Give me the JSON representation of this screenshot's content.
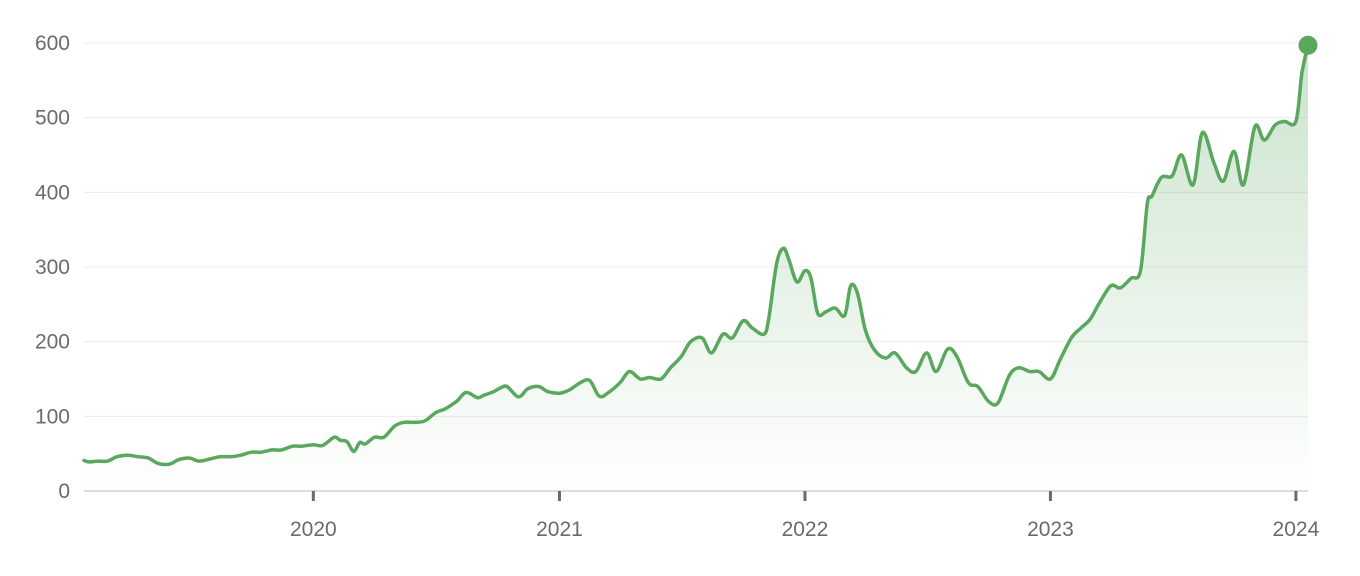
{
  "colors": {
    "line": "#5aa75e",
    "fill": "#5aa75e",
    "grid": "#ececec",
    "axis": "#d2d2d2",
    "tick": "#6b6b6b",
    "text": "#6b6b6b",
    "background": "#ffffff"
  },
  "chart_data": {
    "type": "area",
    "title": "",
    "xlabel": "",
    "ylabel": "",
    "x_range": [
      "2019-01-25",
      "2024-01-19"
    ],
    "ylim": [
      0,
      600
    ],
    "grid": true,
    "legend": "none",
    "y_ticks": [
      0,
      100,
      200,
      300,
      400,
      500,
      600
    ],
    "y_tick_labels": [
      "0",
      "100",
      "200",
      "300",
      "400",
      "500",
      "600"
    ],
    "x_ticks": [
      "2020-01-01",
      "2021-01-01",
      "2022-01-01",
      "2023-01-01",
      "2024-01-01"
    ],
    "x_tick_labels": [
      "2020",
      "2021",
      "2022",
      "2023",
      "2024"
    ],
    "series": [
      {
        "x": [
          "2019-01-25",
          "2019-02-01",
          "2019-02-15",
          "2019-03-01",
          "2019-03-15",
          "2019-04-01",
          "2019-04-15",
          "2019-05-01",
          "2019-05-15",
          "2019-06-01",
          "2019-06-15",
          "2019-07-01",
          "2019-07-15",
          "2019-08-01",
          "2019-08-15",
          "2019-09-01",
          "2019-09-15",
          "2019-10-01",
          "2019-10-15",
          "2019-11-01",
          "2019-11-15",
          "2019-12-01",
          "2019-12-15",
          "2020-01-01",
          "2020-01-15",
          "2020-02-01",
          "2020-02-10",
          "2020-02-20",
          "2020-03-01",
          "2020-03-10",
          "2020-03-18",
          "2020-04-01",
          "2020-04-15",
          "2020-05-01",
          "2020-05-15",
          "2020-06-01",
          "2020-06-15",
          "2020-07-01",
          "2020-07-15",
          "2020-08-01",
          "2020-08-15",
          "2020-09-01",
          "2020-09-10",
          "2020-09-25",
          "2020-10-05",
          "2020-10-15",
          "2020-11-01",
          "2020-11-15",
          "2020-12-01",
          "2020-12-15",
          "2021-01-01",
          "2021-01-15",
          "2021-02-01",
          "2021-02-15",
          "2021-03-01",
          "2021-03-15",
          "2021-04-01",
          "2021-04-15",
          "2021-05-01",
          "2021-05-15",
          "2021-06-01",
          "2021-06-15",
          "2021-07-01",
          "2021-07-15",
          "2021-08-01",
          "2021-08-15",
          "2021-09-01",
          "2021-09-15",
          "2021-10-01",
          "2021-10-15",
          "2021-11-01",
          "2021-11-08",
          "2021-11-20",
          "2021-11-30",
          "2021-12-08",
          "2021-12-20",
          "2022-01-01",
          "2022-01-10",
          "2022-01-20",
          "2022-02-01",
          "2022-02-15",
          "2022-03-01",
          "2022-03-10",
          "2022-03-20",
          "2022-04-01",
          "2022-04-15",
          "2022-05-01",
          "2022-05-15",
          "2022-06-01",
          "2022-06-15",
          "2022-07-01",
          "2022-07-15",
          "2022-08-01",
          "2022-08-15",
          "2022-09-01",
          "2022-09-15",
          "2022-10-01",
          "2022-10-15",
          "2022-11-01",
          "2022-11-15",
          "2022-12-01",
          "2022-12-15",
          "2023-01-01",
          "2023-01-15",
          "2023-02-01",
          "2023-02-15",
          "2023-03-01",
          "2023-03-15",
          "2023-04-01",
          "2023-04-15",
          "2023-05-01",
          "2023-05-15",
          "2023-05-25",
          "2023-06-01",
          "2023-06-15",
          "2023-07-01",
          "2023-07-15",
          "2023-08-01",
          "2023-08-15",
          "2023-09-01",
          "2023-09-15",
          "2023-10-01",
          "2023-10-15",
          "2023-11-01",
          "2023-11-15",
          "2023-12-01",
          "2023-12-15",
          "2024-01-01",
          "2024-01-10",
          "2024-01-19"
        ],
        "values": [
          41,
          39,
          40,
          40,
          46,
          48,
          46,
          44,
          37,
          36,
          42,
          44,
          40,
          43,
          46,
          46,
          48,
          52,
          52,
          55,
          55,
          60,
          60,
          62,
          61,
          72,
          68,
          66,
          53,
          65,
          63,
          72,
          72,
          87,
          92,
          92,
          94,
          105,
          110,
          120,
          132,
          125,
          128,
          133,
          138,
          140,
          126,
          137,
          140,
          133,
          131,
          135,
          145,
          148,
          127,
          132,
          145,
          160,
          150,
          152,
          150,
          165,
          180,
          200,
          205,
          185,
          210,
          205,
          228,
          218,
          210,
          230,
          305,
          325,
          310,
          280,
          295,
          285,
          238,
          240,
          245,
          235,
          275,
          265,
          215,
          188,
          178,
          185,
          165,
          160,
          185,
          160,
          190,
          180,
          145,
          140,
          120,
          118,
          155,
          165,
          160,
          160,
          150,
          175,
          205,
          218,
          230,
          252,
          275,
          272,
          285,
          295,
          385,
          395,
          420,
          422,
          450,
          410,
          480,
          440,
          415,
          455,
          410,
          488,
          470,
          490,
          495,
          495,
          560,
          597
        ]
      }
    ]
  }
}
